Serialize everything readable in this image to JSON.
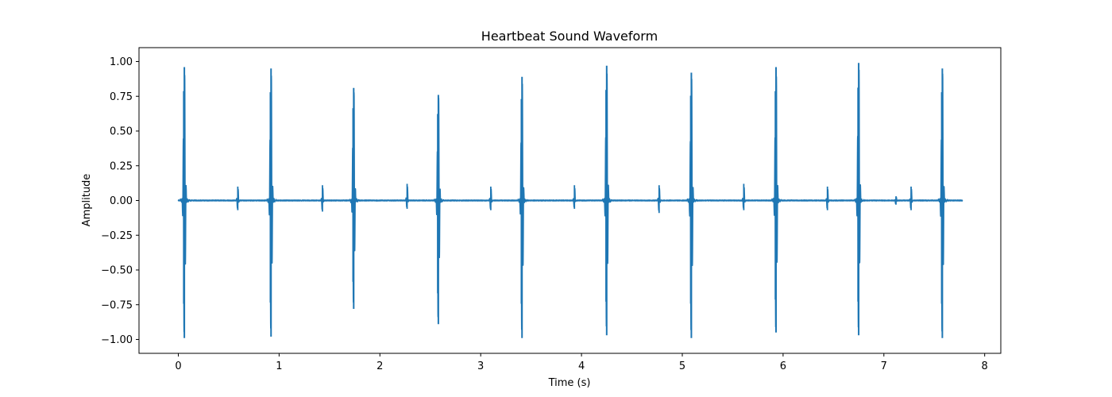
{
  "chart_data": {
    "type": "line",
    "title": "Heartbeat Sound Waveform",
    "xlabel": "Time (s)",
    "ylabel": "Amplitude",
    "xlim": [
      -0.39,
      8.16
    ],
    "ylim": [
      -1.1,
      1.1
    ],
    "x_ticks": [
      0,
      1,
      2,
      3,
      4,
      5,
      6,
      7,
      8
    ],
    "x_tick_labels": [
      "0",
      "1",
      "2",
      "3",
      "4",
      "5",
      "6",
      "7",
      "8"
    ],
    "y_ticks": [
      1.0,
      0.75,
      0.5,
      0.25,
      0.0,
      -0.25,
      -0.5,
      -0.75,
      -1.0
    ],
    "y_tick_labels": [
      "1.00",
      "0.75",
      "0.50",
      "0.25",
      "0.00",
      "−0.25",
      "−0.50",
      "−0.75",
      "−1.00"
    ],
    "grid": false,
    "legend": "none",
    "series": [
      {
        "color": "#1f77b4",
        "duration": 7.78,
        "baseline": 0.0,
        "beats_s1": [
          {
            "t": 0.06,
            "max": 0.96,
            "min": -0.99
          },
          {
            "t": 0.92,
            "max": 0.95,
            "min": -0.98
          },
          {
            "t": 1.74,
            "max": 0.81,
            "min": -0.78
          },
          {
            "t": 2.58,
            "max": 0.76,
            "min": -0.89
          },
          {
            "t": 3.41,
            "max": 0.89,
            "min": -0.99
          },
          {
            "t": 4.25,
            "max": 0.97,
            "min": -0.97
          },
          {
            "t": 5.09,
            "max": 0.92,
            "min": -0.99
          },
          {
            "t": 5.93,
            "max": 0.96,
            "min": -0.95
          },
          {
            "t": 6.75,
            "max": 0.99,
            "min": -0.97
          },
          {
            "t": 7.58,
            "max": 0.95,
            "min": -0.99
          }
        ],
        "beats_s2": [
          {
            "t": 0.59,
            "max": 0.1,
            "min": -0.07
          },
          {
            "t": 1.43,
            "max": 0.11,
            "min": -0.08
          },
          {
            "t": 2.27,
            "max": 0.12,
            "min": -0.06
          },
          {
            "t": 3.1,
            "max": 0.1,
            "min": -0.07
          },
          {
            "t": 3.93,
            "max": 0.11,
            "min": -0.06
          },
          {
            "t": 4.77,
            "max": 0.11,
            "min": -0.09
          },
          {
            "t": 5.61,
            "max": 0.12,
            "min": -0.07
          },
          {
            "t": 6.44,
            "max": 0.1,
            "min": -0.07
          },
          {
            "t": 7.12,
            "max": 0.03,
            "min": -0.03
          },
          {
            "t": 7.27,
            "max": 0.1,
            "min": -0.07
          }
        ]
      }
    ]
  }
}
